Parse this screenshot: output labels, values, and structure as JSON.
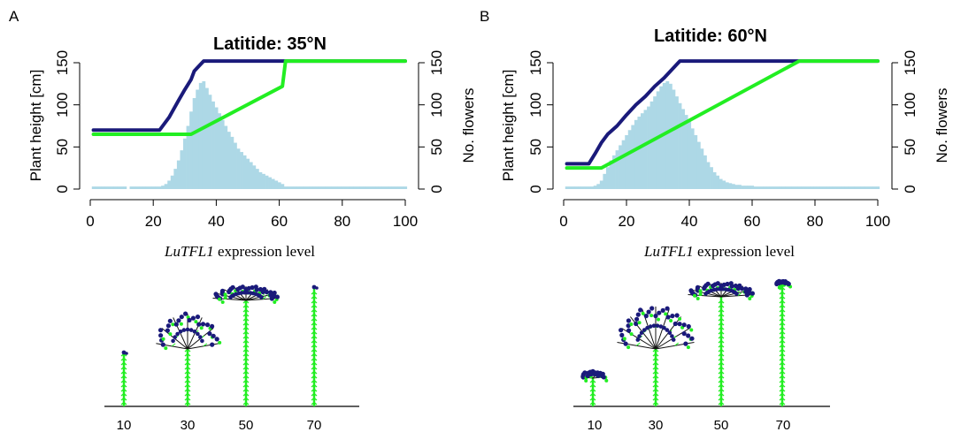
{
  "colors": {
    "height_line": "#1a1a7a",
    "flowers_line": "#22ee22",
    "histogram": "#add8e6",
    "axis": "#000000",
    "stem": "#22ee22",
    "flower_dot": "#1a1a7a"
  },
  "chart_data": [
    {
      "type": "line+histogram",
      "panel_label": "A",
      "title": "Latitide: 35°N",
      "xlabel_italic": "LuTFL1",
      "xlabel_rest": " expression level",
      "ylabel_left": "Plant height [cm]",
      "ylabel_right": "No. flowers",
      "xlim": [
        0,
        100
      ],
      "ylim_left": [
        0,
        150
      ],
      "ylim_right": [
        0,
        150
      ],
      "x_ticks": [
        0,
        20,
        40,
        60,
        80,
        100
      ],
      "y_ticks": [
        0,
        50,
        100,
        150
      ],
      "series": [
        {
          "name": "Plant height",
          "x": [
            1,
            22,
            25,
            28,
            30,
            32,
            33,
            35,
            36,
            100
          ],
          "y": [
            70,
            70,
            85,
            105,
            118,
            130,
            140,
            148,
            152,
            152
          ]
        },
        {
          "name": "No. flowers",
          "x": [
            1,
            32,
            61,
            62,
            100
          ],
          "y": [
            65,
            65,
            122,
            152,
            152
          ]
        }
      ],
      "histogram": {
        "bin_width": 1,
        "x": [
          1,
          2,
          3,
          4,
          5,
          6,
          7,
          8,
          9,
          10,
          11,
          12,
          13,
          14,
          15,
          16,
          17,
          18,
          19,
          20,
          21,
          22,
          23,
          24,
          25,
          26,
          27,
          28,
          29,
          30,
          31,
          32,
          33,
          34,
          35,
          36,
          37,
          38,
          39,
          40,
          41,
          42,
          43,
          44,
          45,
          46,
          47,
          48,
          49,
          50,
          51,
          52,
          53,
          54,
          55,
          56,
          57,
          58,
          59,
          60,
          61,
          62,
          63,
          64,
          65,
          66,
          67,
          68,
          69,
          70,
          71,
          72,
          73,
          74,
          75,
          76,
          77,
          78,
          79,
          80,
          81,
          82,
          83,
          84,
          85,
          86,
          87,
          88,
          89,
          90,
          91,
          92,
          93,
          94,
          95,
          96,
          97,
          98,
          99,
          100
        ],
        "counts": [
          3,
          3,
          3,
          3,
          3,
          3,
          3,
          3,
          3,
          3,
          3,
          0,
          3,
          3,
          3,
          3,
          3,
          3,
          3,
          3,
          3,
          3,
          4,
          6,
          10,
          16,
          24,
          34,
          46,
          60,
          75,
          92,
          108,
          118,
          126,
          128,
          120,
          112,
          104,
          97,
          90,
          82,
          75,
          68,
          62,
          55,
          48,
          44,
          40,
          36,
          32,
          28,
          24,
          20,
          18,
          16,
          14,
          12,
          10,
          8,
          6,
          3,
          3,
          3,
          3,
          3,
          3,
          3,
          3,
          3,
          3,
          3,
          3,
          3,
          3,
          3,
          3,
          3,
          3,
          3,
          3,
          3,
          3,
          3,
          3,
          3,
          3,
          3,
          3,
          3,
          3,
          3,
          3,
          3,
          3,
          3,
          3,
          3,
          3,
          3
        ]
      }
    },
    {
      "type": "line+histogram",
      "panel_label": "B",
      "title": "Latitide: 60°N",
      "xlabel_italic": "LuTFL1",
      "xlabel_rest": " expression level",
      "ylabel_left": "Plant height [cm]",
      "ylabel_right": "No. flowers",
      "xlim": [
        0,
        100
      ],
      "ylim_left": [
        0,
        150
      ],
      "ylim_right": [
        0,
        150
      ],
      "x_ticks": [
        0,
        20,
        40,
        60,
        80,
        100
      ],
      "y_ticks": [
        0,
        50,
        100,
        150
      ],
      "series": [
        {
          "name": "Plant height",
          "x": [
            1,
            8,
            10,
            12,
            14,
            17,
            20,
            23,
            26,
            29,
            32,
            34,
            36,
            37,
            100
          ],
          "y": [
            30,
            30,
            42,
            55,
            65,
            75,
            88,
            100,
            110,
            122,
            132,
            140,
            148,
            152,
            152
          ]
        },
        {
          "name": "No. flowers",
          "x": [
            1,
            12,
            75,
            100
          ],
          "y": [
            25,
            25,
            152,
            152
          ]
        }
      ],
      "histogram": {
        "bin_width": 1,
        "x": [
          1,
          2,
          3,
          4,
          5,
          6,
          7,
          8,
          9,
          10,
          11,
          12,
          13,
          14,
          15,
          16,
          17,
          18,
          19,
          20,
          21,
          22,
          23,
          24,
          25,
          26,
          27,
          28,
          29,
          30,
          31,
          32,
          33,
          34,
          35,
          36,
          37,
          38,
          39,
          40,
          41,
          42,
          43,
          44,
          45,
          46,
          47,
          48,
          49,
          50,
          51,
          52,
          53,
          54,
          55,
          56,
          57,
          58,
          59,
          60,
          61,
          62,
          63,
          64,
          65,
          66,
          67,
          68,
          69,
          70,
          71,
          72,
          73,
          74,
          75,
          76,
          77,
          78,
          79,
          80,
          81,
          82,
          83,
          84,
          85,
          86,
          87,
          88,
          89,
          90,
          91,
          92,
          93,
          94,
          95,
          96,
          97,
          98,
          99,
          100
        ],
        "counts": [
          3,
          3,
          3,
          3,
          3,
          3,
          3,
          3,
          3,
          4,
          6,
          10,
          18,
          26,
          34,
          40,
          46,
          52,
          58,
          64,
          70,
          76,
          82,
          86,
          90,
          94,
          98,
          104,
          110,
          116,
          122,
          126,
          128,
          125,
          118,
          110,
          102,
          95,
          88,
          80,
          72,
          64,
          56,
          48,
          40,
          32,
          26,
          20,
          16,
          12,
          10,
          8,
          7,
          6,
          5,
          5,
          4,
          4,
          4,
          4,
          3,
          3,
          3,
          3,
          3,
          3,
          3,
          3,
          3,
          3,
          3,
          3,
          3,
          3,
          3,
          3,
          3,
          3,
          3,
          3,
          3,
          3,
          3,
          3,
          3,
          3,
          3,
          3,
          3,
          3,
          3,
          3,
          3,
          3,
          3,
          3,
          3,
          3,
          3,
          3
        ]
      }
    }
  ],
  "plant_panels": [
    {
      "tick_labels": [
        "10",
        "30",
        "50",
        "70"
      ]
    },
    {
      "tick_labels": [
        "10",
        "30",
        "50",
        "70"
      ]
    }
  ]
}
